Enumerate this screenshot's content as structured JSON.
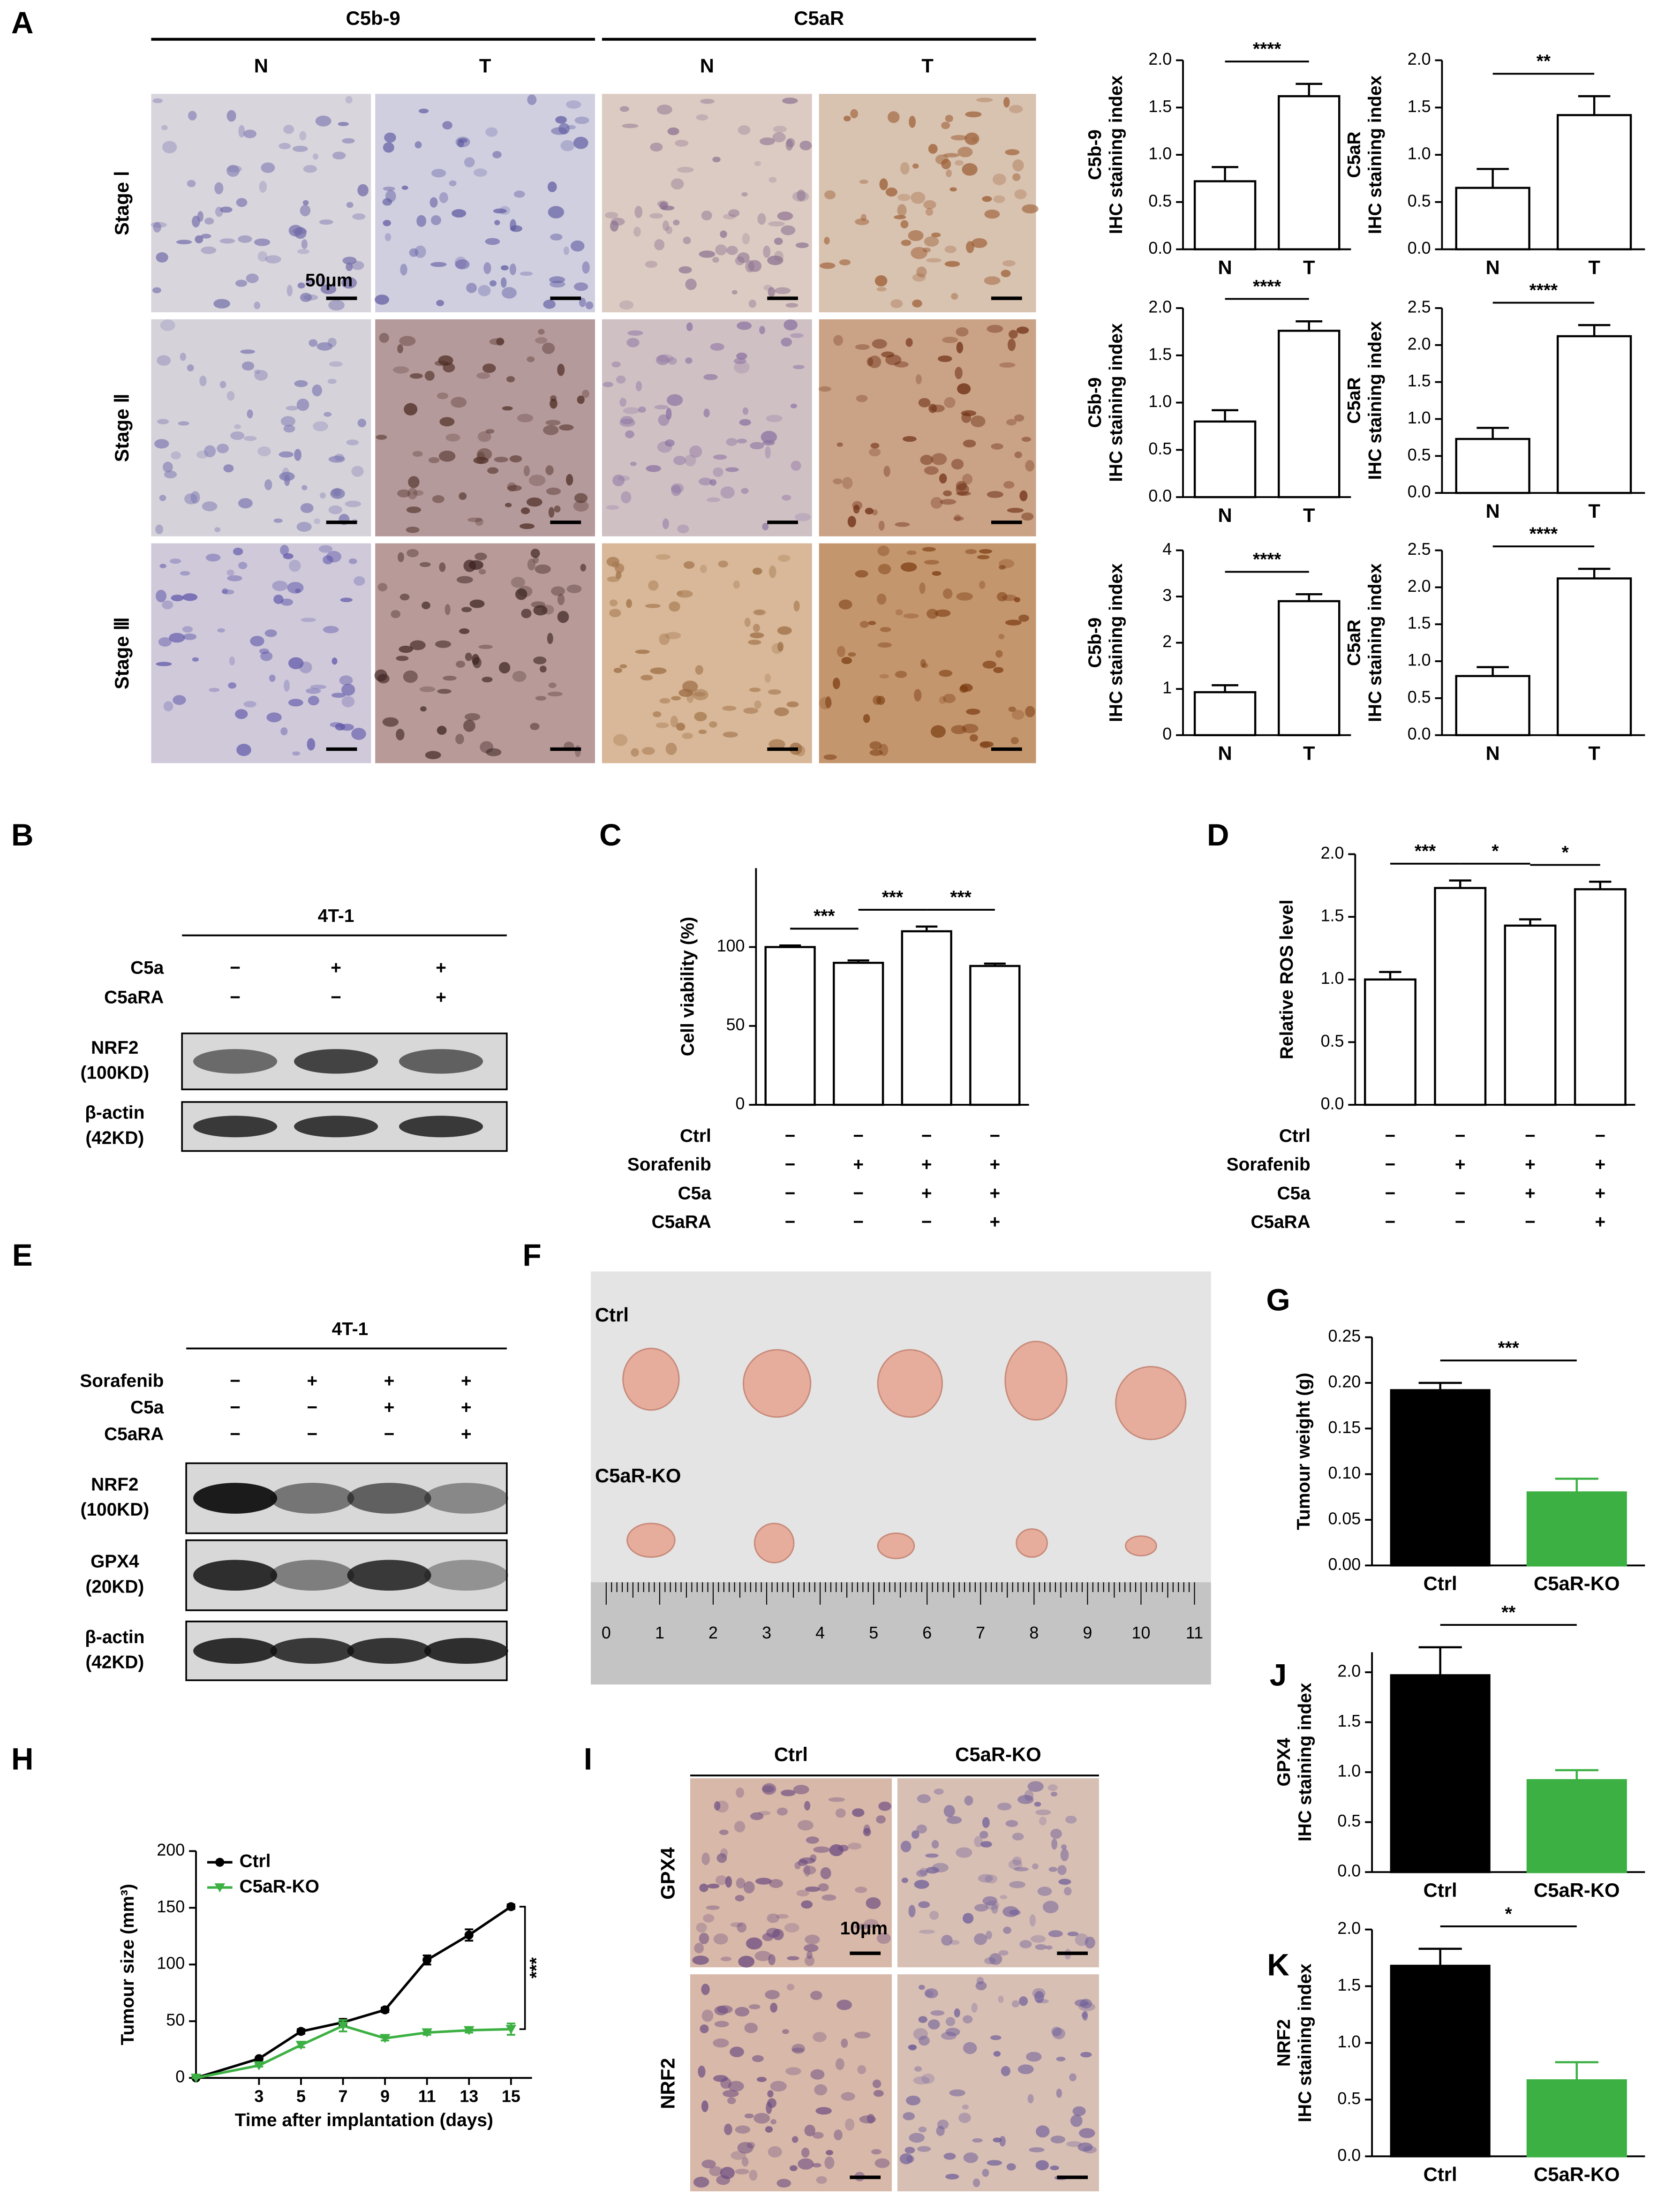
{
  "panel_labels": [
    "A",
    "B",
    "C",
    "D",
    "E",
    "F",
    "G",
    "H",
    "I",
    "J",
    "K"
  ],
  "panel_a": {
    "groups": [
      "C5b-9",
      "C5aR"
    ],
    "columns": [
      "N",
      "T",
      "N",
      "T"
    ],
    "rows": [
      "Stage Ⅰ",
      "Stage Ⅱ",
      "Stage Ⅲ"
    ],
    "scale_bar": "50μm"
  },
  "panel_b": {
    "cell_line": "4T-1",
    "conditions": [
      {
        "name": "C5a",
        "signs": [
          "−",
          "+",
          "+"
        ]
      },
      {
        "name": "C5aRA",
        "signs": [
          "−",
          "−",
          "+"
        ]
      }
    ],
    "blots": [
      {
        "protein": "NRF2",
        "size": "(100KD)"
      },
      {
        "protein": "β-actin",
        "size": "(42KD)"
      }
    ]
  },
  "panel_e": {
    "cell_line": "4T-1",
    "conditions": [
      {
        "name": "Sorafenib",
        "signs": [
          "−",
          "+",
          "+",
          "+"
        ]
      },
      {
        "name": "C5a",
        "signs": [
          "−",
          "−",
          "+",
          "+"
        ]
      },
      {
        "name": "C5aRA",
        "signs": [
          "−",
          "−",
          "−",
          "+"
        ]
      }
    ],
    "blots": [
      {
        "protein": "NRF2",
        "size": "(100KD)"
      },
      {
        "protein": "GPX4",
        "size": "(20KD)"
      },
      {
        "protein": "β-actin",
        "size": "(42KD)"
      }
    ]
  },
  "panel_f": {
    "groups": [
      "Ctrl",
      "C5aR-KO"
    ],
    "ruler": [
      0,
      1,
      2,
      3,
      4,
      5,
      6,
      7,
      8,
      9,
      10,
      11
    ]
  },
  "panel_i": {
    "columns": [
      "Ctrl",
      "C5aR-KO"
    ],
    "rows": [
      "GPX4",
      "NRF2"
    ],
    "scale_bar": "10μm"
  },
  "chart_data": [
    {
      "type": "bar",
      "y_label": [
        "C5b-9",
        "IHC staining index"
      ],
      "categories": [
        "N",
        "T"
      ],
      "values": [
        0.72,
        1.62
      ],
      "errors": [
        0.15,
        0.13
      ],
      "color": "#ffffff",
      "ylim": [
        0,
        2
      ],
      "yticks": [
        {
          "value": 0,
          "label": "0.0"
        },
        0.5,
        {
          "value": 1,
          "label": "1.0"
        },
        1.5,
        {
          "value": 2,
          "label": "2.0"
        }
      ],
      "annotations": [
        "****"
      ]
    },
    {
      "type": "bar",
      "y_label": [
        "C5aR",
        "IHC staining index"
      ],
      "categories": [
        "N",
        "T"
      ],
      "values": [
        0.65,
        1.42
      ],
      "errors": [
        0.2,
        0.2
      ],
      "color": "#ffffff",
      "ylim": [
        0,
        2
      ],
      "yticks": [
        {
          "value": 0,
          "label": "0.0"
        },
        0.5,
        {
          "value": 1,
          "label": "1.0"
        },
        1.5,
        {
          "value": 2,
          "label": "2.0"
        }
      ],
      "annotations": [
        "**"
      ]
    },
    {
      "type": "bar",
      "y_label": [
        "C5b-9",
        "IHC staining index"
      ],
      "categories": [
        "N",
        "T"
      ],
      "values": [
        0.8,
        1.76
      ],
      "errors": [
        0.12,
        0.1
      ],
      "color": "#ffffff",
      "ylim": [
        0,
        2
      ],
      "yticks": [
        {
          "value": 0,
          "label": "0.0"
        },
        0.5,
        {
          "value": 1,
          "label": "1.0"
        },
        1.5,
        {
          "value": 2,
          "label": "2.0"
        }
      ],
      "annotations": [
        "****"
      ]
    },
    {
      "type": "bar",
      "y_label": [
        "C5aR",
        "IHC staining index"
      ],
      "categories": [
        "N",
        "T"
      ],
      "values": [
        0.73,
        2.12
      ],
      "errors": [
        0.15,
        0.15
      ],
      "color": "#ffffff",
      "ylim": [
        0,
        2.5
      ],
      "yticks": [
        {
          "value": 0,
          "label": "0.0"
        },
        0.5,
        {
          "value": 1,
          "label": "1.0"
        },
        1.5,
        {
          "value": 2,
          "label": "2.0"
        },
        2.5
      ],
      "annotations": [
        "****"
      ]
    },
    {
      "type": "bar",
      "y_label": [
        "C5b-9",
        "IHC staining index"
      ],
      "categories": [
        "N",
        "T"
      ],
      "values": [
        0.93,
        2.9
      ],
      "errors": [
        0.15,
        0.15
      ],
      "color": "#ffffff",
      "ylim": [
        0,
        4
      ],
      "yticks": [
        0,
        1,
        2,
        3,
        4
      ],
      "annotations": [
        "****"
      ]
    },
    {
      "type": "bar",
      "y_label": [
        "C5aR",
        "IHC staining index"
      ],
      "categories": [
        "N",
        "T"
      ],
      "values": [
        0.8,
        2.12
      ],
      "errors": [
        0.12,
        0.13
      ],
      "color": "#ffffff",
      "ylim": [
        0,
        2.5
      ],
      "yticks": [
        {
          "value": 0,
          "label": "0.0"
        },
        0.5,
        {
          "value": 1,
          "label": "1.0"
        },
        1.5,
        {
          "value": 2,
          "label": "2.0"
        },
        2.5
      ],
      "annotations": [
        "****"
      ]
    },
    {
      "type": "bar",
      "y_label": "Cell viability (%)",
      "values": [
        100,
        90,
        110,
        88
      ],
      "errors": [
        1,
        1.5,
        3,
        1.5
      ],
      "color": "#ffffff",
      "ylim": [
        0,
        150
      ],
      "yticks": [
        0,
        50,
        100
      ],
      "annotations": [
        "***",
        "***",
        "***"
      ],
      "conditions": [
        {
          "name": "Ctrl",
          "signs": [
            "−",
            "−",
            "−",
            "−"
          ]
        },
        {
          "name": "Sorafenib",
          "signs": [
            "−",
            "+",
            "+",
            "+"
          ]
        },
        {
          "name": "C5a",
          "signs": [
            "−",
            "−",
            "+",
            "+"
          ]
        },
        {
          "name": "C5aRA",
          "signs": [
            "−",
            "−",
            "−",
            "+"
          ]
        }
      ]
    },
    {
      "type": "bar",
      "y_label": "Relative ROS level",
      "values": [
        1.0,
        1.73,
        1.43,
        1.72
      ],
      "errors": [
        0.06,
        0.06,
        0.05,
        0.06
      ],
      "color": "#ffffff",
      "ylim": [
        0,
        2
      ],
      "yticks": [
        {
          "value": 0,
          "label": "0.0"
        },
        0.5,
        {
          "value": 1,
          "label": "1.0"
        },
        1.5,
        {
          "value": 2,
          "label": "2.0"
        }
      ],
      "annotations": [
        "***",
        "*",
        "*"
      ],
      "conditions": [
        {
          "name": "Ctrl",
          "signs": [
            "−",
            "−",
            "−",
            "−"
          ]
        },
        {
          "name": "Sorafenib",
          "signs": [
            "−",
            "+",
            "+",
            "+"
          ]
        },
        {
          "name": "C5a",
          "signs": [
            "−",
            "−",
            "+",
            "+"
          ]
        },
        {
          "name": "C5aRA",
          "signs": [
            "−",
            "−",
            "−",
            "+"
          ]
        }
      ]
    },
    {
      "type": "bar",
      "y_label": "Tumour weight (g)",
      "categories": [
        "Ctrl",
        "C5aR-KO"
      ],
      "values": [
        0.192,
        0.08
      ],
      "errors": [
        0.008,
        0.015
      ],
      "colors": [
        "#000000",
        "#3cb043"
      ],
      "ylim": [
        0,
        0.25
      ],
      "yticks": [
        {
          "value": 0,
          "label": "0.00"
        },
        0.05,
        {
          "value": 0.1,
          "label": "0.10"
        },
        0.15,
        {
          "value": 0.2,
          "label": "0.20"
        },
        0.25
      ],
      "annotations": [
        "***"
      ]
    },
    {
      "type": "line",
      "x_label": "Time after implantation (days)",
      "y_label": "Tumour size (mm³)",
      "x": [
        0,
        3,
        5,
        7,
        9,
        11,
        13,
        15
      ],
      "xlim": [
        0,
        16
      ],
      "xticks": [
        3,
        5,
        7,
        9,
        11,
        13,
        15
      ],
      "ylim": [
        0,
        200
      ],
      "yticks": [
        0,
        50,
        100,
        150,
        200
      ],
      "series": [
        {
          "name": "Ctrl",
          "color": "#000000",
          "values": [
            0,
            17,
            41,
            49,
            60,
            104,
            126,
            151
          ],
          "errors": [
            0,
            1,
            2,
            3,
            2,
            4,
            5,
            2
          ]
        },
        {
          "name": "C5aR-KO",
          "color": "#3cb043",
          "values": [
            0,
            11,
            29,
            46,
            35,
            40,
            42,
            43
          ],
          "errors": [
            0,
            1,
            2,
            5,
            2,
            2,
            2,
            5
          ]
        }
      ],
      "annotations": [
        "***"
      ]
    },
    {
      "type": "bar",
      "y_label": [
        "GPX4",
        "IHC staining index"
      ],
      "categories": [
        "Ctrl",
        "C5aR-KO"
      ],
      "values": [
        1.97,
        0.92
      ],
      "errors": [
        0.28,
        0.1
      ],
      "colors": [
        "#000000",
        "#3cb043"
      ],
      "ylim": [
        0,
        2.2
      ],
      "yticks": [
        {
          "value": 0,
          "label": "0.0"
        },
        0.5,
        {
          "value": 1,
          "label": "1.0"
        },
        1.5,
        {
          "value": 2,
          "label": "2.0"
        }
      ],
      "annotations": [
        "**"
      ]
    },
    {
      "type": "bar",
      "y_label": [
        "NRF2",
        "IHC staining index"
      ],
      "categories": [
        "Ctrl",
        "C5aR-KO"
      ],
      "values": [
        1.68,
        0.67
      ],
      "errors": [
        0.15,
        0.16
      ],
      "colors": [
        "#000000",
        "#3cb043"
      ],
      "ylim": [
        0,
        2
      ],
      "yticks": [
        {
          "value": 0,
          "label": "0.0"
        },
        0.5,
        {
          "value": 1,
          "label": "1.0"
        },
        1.5,
        {
          "value": 2,
          "label": "2.0"
        }
      ],
      "annotations": [
        "*"
      ]
    }
  ]
}
